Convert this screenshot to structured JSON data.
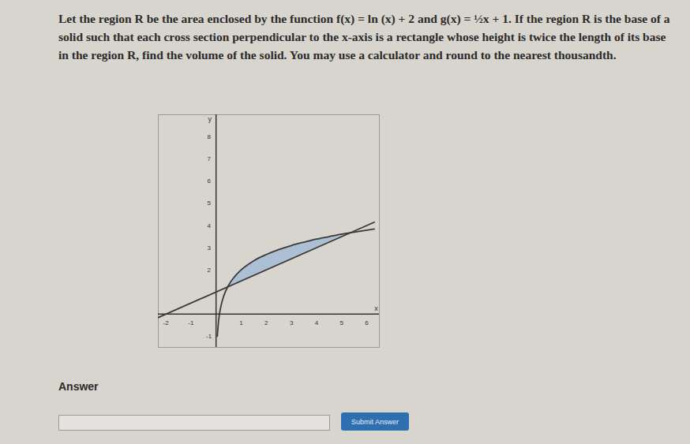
{
  "problem": "Let the region R be the area enclosed by the function f(x) = ln (x) + 2 and g(x) = ½x + 1. If the region R is the base of a solid such that each cross section perpendicular to the x-axis is a rectangle whose height is twice the length of its base in the region R, find the volume of the solid. You may use a calculator and round to the nearest thousandth.",
  "chart_data": {
    "type": "line",
    "x_label": "x",
    "y_label": "y",
    "xlim": [
      -2.3,
      6.5
    ],
    "ylim": [
      -1.5,
      9
    ],
    "xticks": [
      -2,
      -1,
      1,
      2,
      3,
      4,
      5,
      6
    ],
    "yticks": [
      -1,
      2,
      3,
      4,
      5,
      6,
      7,
      8
    ],
    "series": [
      {
        "color": "#3a3a3a",
        "x": [
          0.05,
          0.1,
          0.2,
          0.3,
          0.5,
          0.75,
          1,
          1.5,
          2,
          2.5,
          3,
          3.5,
          4,
          4.5,
          5,
          5.5,
          6.3
        ],
        "values": [
          -1.0,
          -0.3,
          0.39,
          0.8,
          1.31,
          1.71,
          2,
          2.41,
          2.69,
          2.92,
          3.1,
          3.25,
          3.39,
          3.5,
          3.61,
          3.7,
          3.84
        ]
      },
      {
        "color": "#3a3a3a",
        "x": [
          -2.3,
          6.3
        ],
        "values": [
          -0.15,
          4.15
        ]
      }
    ],
    "region": {
      "color": "#a9bed3",
      "x": [
        0.47,
        0.75,
        1,
        1.5,
        2,
        2.5,
        3,
        3.5,
        4,
        4.5,
        5,
        5.36
      ],
      "upper": [
        1.245,
        1.71,
        2,
        2.41,
        2.69,
        2.92,
        3.1,
        3.25,
        3.39,
        3.5,
        3.61,
        3.68
      ],
      "lower": [
        1.235,
        1.375,
        1.5,
        1.75,
        2,
        2.25,
        2.5,
        2.75,
        3,
        3.25,
        3.5,
        3.68
      ]
    }
  },
  "answer_label": "Answer",
  "button": "Submit Answer"
}
